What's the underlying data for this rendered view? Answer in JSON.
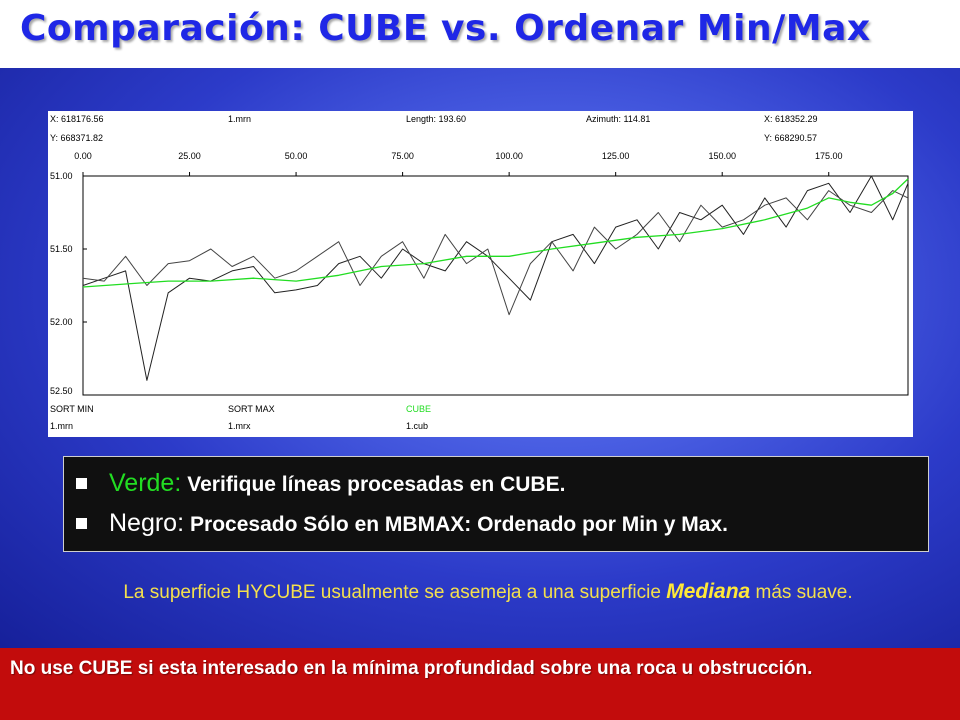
{
  "title": "Comparación: CUBE vs. Ordenar Min/Max",
  "chart_data": {
    "type": "line",
    "header": {
      "x_start": "X: 618176.56",
      "y_start": "Y: 668371.82",
      "file": "1.mrn",
      "length": "Length: 193.60",
      "azimuth": "Azimuth: 114.81",
      "x_end": "X: 618352.29",
      "y_end": "Y: 668290.57"
    },
    "x_ticks": [
      "0.00",
      "25.00",
      "50.00",
      "75.00",
      "100.00",
      "125.00",
      "150.00",
      "175.00"
    ],
    "y_ticks": [
      "51.00",
      "51.50",
      "52.00",
      "52.50"
    ],
    "xlim": [
      0,
      193.6
    ],
    "ylim": [
      51.0,
      52.5
    ],
    "y_inverted": true,
    "grid": false,
    "footer": [
      {
        "label": "SORT MIN",
        "file": "1.mrn",
        "color": "#000000"
      },
      {
        "label": "SORT MAX",
        "file": "1.mrx",
        "color": "#000000"
      },
      {
        "label": "CUBE",
        "file": "1.cub",
        "color": "#22dd22"
      }
    ],
    "series": [
      {
        "name": "SORT MIN",
        "color": "#222222",
        "x": [
          0,
          5,
          10,
          15,
          20,
          25,
          30,
          35,
          40,
          45,
          50,
          55,
          60,
          65,
          70,
          75,
          80,
          85,
          90,
          95,
          100,
          105,
          110,
          115,
          120,
          125,
          130,
          135,
          140,
          145,
          150,
          155,
          160,
          165,
          170,
          175,
          180,
          185,
          190,
          193.6
        ],
        "y": [
          51.75,
          51.7,
          51.65,
          52.4,
          51.8,
          51.7,
          51.72,
          51.65,
          51.62,
          51.8,
          51.78,
          51.75,
          51.6,
          51.55,
          51.7,
          51.5,
          51.6,
          51.65,
          51.45,
          51.55,
          51.7,
          51.85,
          51.45,
          51.4,
          51.6,
          51.35,
          51.3,
          51.5,
          51.25,
          51.3,
          51.2,
          51.4,
          51.15,
          51.35,
          51.1,
          51.05,
          51.25,
          51.0,
          51.3,
          51.05
        ]
      },
      {
        "name": "SORT MAX",
        "color": "#444444",
        "x": [
          0,
          5,
          10,
          15,
          20,
          25,
          30,
          35,
          40,
          45,
          50,
          55,
          60,
          65,
          70,
          75,
          80,
          85,
          90,
          95,
          100,
          105,
          110,
          115,
          120,
          125,
          130,
          135,
          140,
          145,
          150,
          155,
          160,
          165,
          170,
          175,
          180,
          185,
          190,
          193.6
        ],
        "y": [
          51.7,
          51.72,
          51.55,
          51.75,
          51.6,
          51.58,
          51.5,
          51.62,
          51.55,
          51.7,
          51.65,
          51.55,
          51.45,
          51.75,
          51.55,
          51.45,
          51.7,
          51.4,
          51.6,
          51.5,
          51.95,
          51.6,
          51.45,
          51.65,
          51.35,
          51.5,
          51.4,
          51.25,
          51.45,
          51.2,
          51.35,
          51.3,
          51.2,
          51.15,
          51.3,
          51.1,
          51.2,
          51.25,
          51.1,
          51.15
        ]
      },
      {
        "name": "CUBE",
        "color": "#22dd22",
        "x": [
          0,
          10,
          20,
          30,
          40,
          50,
          60,
          70,
          80,
          90,
          100,
          110,
          120,
          130,
          140,
          150,
          160,
          170,
          175,
          180,
          185,
          190,
          193.6
        ],
        "y": [
          51.76,
          51.74,
          51.72,
          51.72,
          51.7,
          51.72,
          51.68,
          51.62,
          51.6,
          51.55,
          51.55,
          51.5,
          51.46,
          51.42,
          51.4,
          51.36,
          51.3,
          51.22,
          51.15,
          51.18,
          51.2,
          51.12,
          51.02
        ]
      }
    ]
  },
  "legend": [
    {
      "key": "Verde:",
      "key_color": "#22dd22",
      "text": "Verifique líneas procesadas en CUBE."
    },
    {
      "key": "Negro:",
      "key_color": "#ffffff",
      "text": "Procesado Sólo en MBMAX:  Ordenado por Min y Max."
    }
  ],
  "note": {
    "before": "La superficie HYCUBE usualmente se asemeja a una superficie ",
    "emphasis": "Mediana",
    "after": " más suave."
  },
  "warning": "No use CUBE si esta interesado en la mínima profundidad sobre una roca u obstrucción."
}
